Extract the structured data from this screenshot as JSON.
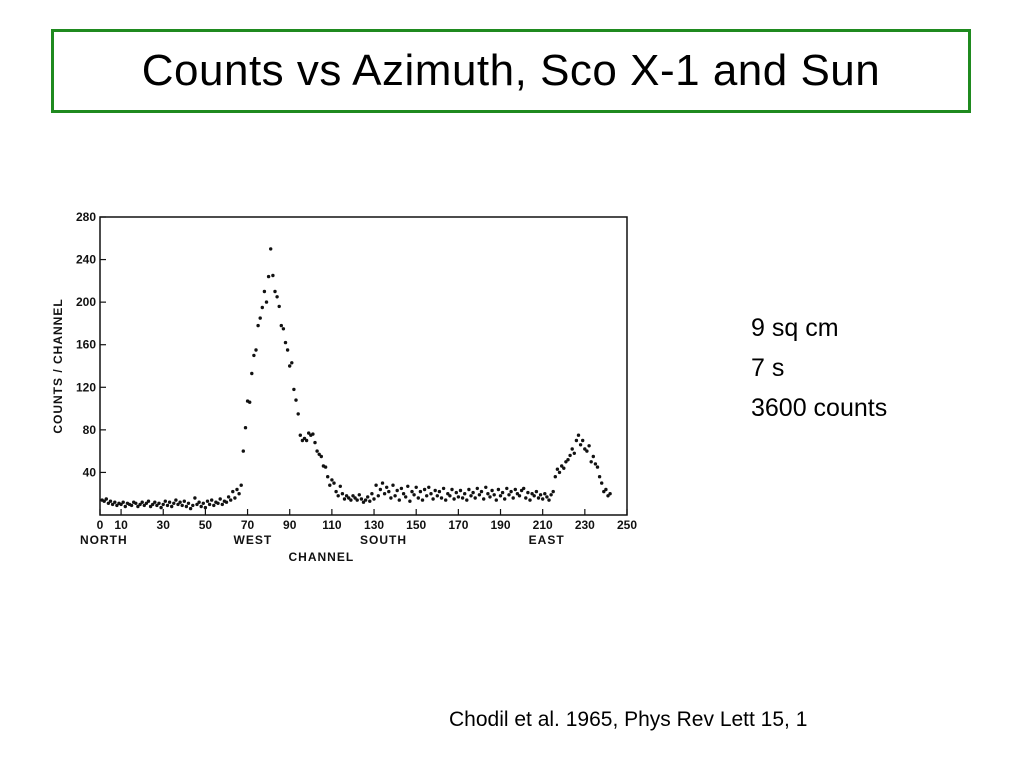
{
  "slide": {
    "title": "Counts vs Azimuth, Sco X-1 and Sun",
    "notes": [
      "9 sq cm",
      "7 s",
      "3600 counts"
    ],
    "citation": "Chodil et al. 1965, Phys Rev Lett 15, 1"
  },
  "chart_data": {
    "type": "scatter",
    "title": "",
    "xlabel": "CHANNEL",
    "ylabel": "COUNTS / CHANNEL",
    "xlim": [
      0,
      250
    ],
    "ylim": [
      0,
      280
    ],
    "xticks": [
      "0",
      "10",
      "30",
      "50",
      "70",
      "90",
      "110",
      "130",
      "150",
      "170",
      "190",
      "210",
      "230",
      "250"
    ],
    "xtick_values": [
      0,
      10,
      30,
      50,
      70,
      90,
      110,
      130,
      150,
      170,
      190,
      210,
      230,
      250
    ],
    "yticks": [
      "40",
      "80",
      "120",
      "160",
      "200",
      "240",
      "280"
    ],
    "ytick_values": [
      40,
      80,
      120,
      160,
      200,
      240,
      280
    ],
    "direction_labels": [
      {
        "text": "NORTH",
        "x": 0
      },
      {
        "text": "WEST",
        "x": 70
      },
      {
        "text": "SOUTH",
        "x": 130
      },
      {
        "text": "EAST",
        "x": 210
      }
    ],
    "grid": false,
    "series": [
      {
        "points": [
          [
            1,
            14
          ],
          [
            2,
            13
          ],
          [
            3,
            15
          ],
          [
            4,
            11
          ],
          [
            5,
            13
          ],
          [
            6,
            10
          ],
          [
            7,
            12
          ],
          [
            8,
            9
          ],
          [
            9,
            11
          ],
          [
            10,
            10
          ],
          [
            11,
            12
          ],
          [
            12,
            8
          ],
          [
            13,
            11
          ],
          [
            14,
            10
          ],
          [
            15,
            9
          ],
          [
            16,
            12
          ],
          [
            17,
            11
          ],
          [
            18,
            8
          ],
          [
            19,
            10
          ],
          [
            20,
            12
          ],
          [
            21,
            9
          ],
          [
            22,
            11
          ],
          [
            23,
            13
          ],
          [
            24,
            8
          ],
          [
            25,
            10
          ],
          [
            26,
            12
          ],
          [
            27,
            9
          ],
          [
            28,
            11
          ],
          [
            29,
            7
          ],
          [
            30,
            10
          ],
          [
            31,
            13
          ],
          [
            32,
            9
          ],
          [
            33,
            12
          ],
          [
            34,
            8
          ],
          [
            35,
            11
          ],
          [
            36,
            14
          ],
          [
            37,
            10
          ],
          [
            38,
            12
          ],
          [
            39,
            9
          ],
          [
            40,
            13
          ],
          [
            41,
            8
          ],
          [
            42,
            11
          ],
          [
            43,
            6
          ],
          [
            44,
            9
          ],
          [
            45,
            16
          ],
          [
            46,
            10
          ],
          [
            47,
            12
          ],
          [
            48,
            8
          ],
          [
            49,
            11
          ],
          [
            50,
            7
          ],
          [
            51,
            13
          ],
          [
            52,
            10
          ],
          [
            53,
            14
          ],
          [
            54,
            9
          ],
          [
            55,
            12
          ],
          [
            56,
            11
          ],
          [
            57,
            15
          ],
          [
            58,
            10
          ],
          [
            59,
            13
          ],
          [
            60,
            12
          ],
          [
            61,
            17
          ],
          [
            62,
            14
          ],
          [
            63,
            22
          ],
          [
            64,
            16
          ],
          [
            65,
            24
          ],
          [
            66,
            20
          ],
          [
            67,
            28
          ],
          [
            68,
            60
          ],
          [
            69,
            82
          ],
          [
            70,
            107
          ],
          [
            71,
            106
          ],
          [
            72,
            133
          ],
          [
            73,
            150
          ],
          [
            74,
            155
          ],
          [
            75,
            178
          ],
          [
            76,
            185
          ],
          [
            77,
            195
          ],
          [
            78,
            210
          ],
          [
            79,
            200
          ],
          [
            80,
            224
          ],
          [
            81,
            250
          ],
          [
            82,
            225
          ],
          [
            83,
            210
          ],
          [
            84,
            205
          ],
          [
            85,
            196
          ],
          [
            86,
            178
          ],
          [
            87,
            175
          ],
          [
            88,
            162
          ],
          [
            89,
            155
          ],
          [
            90,
            140
          ],
          [
            91,
            143
          ],
          [
            92,
            118
          ],
          [
            93,
            108
          ],
          [
            94,
            95
          ],
          [
            95,
            75
          ],
          [
            96,
            70
          ],
          [
            97,
            72
          ],
          [
            98,
            70
          ],
          [
            99,
            77
          ],
          [
            100,
            75
          ],
          [
            101,
            76
          ],
          [
            102,
            68
          ],
          [
            103,
            60
          ],
          [
            104,
            57
          ],
          [
            105,
            55
          ],
          [
            106,
            46
          ],
          [
            107,
            45
          ],
          [
            108,
            36
          ],
          [
            109,
            28
          ],
          [
            110,
            33
          ],
          [
            111,
            30
          ],
          [
            112,
            22
          ],
          [
            113,
            18
          ],
          [
            114,
            27
          ],
          [
            115,
            20
          ],
          [
            116,
            15
          ],
          [
            117,
            18
          ],
          [
            118,
            16
          ],
          [
            119,
            14
          ],
          [
            120,
            18
          ],
          [
            121,
            16
          ],
          [
            122,
            14
          ],
          [
            123,
            19
          ],
          [
            124,
            15
          ],
          [
            125,
            12
          ],
          [
            126,
            14
          ],
          [
            127,
            17
          ],
          [
            128,
            13
          ],
          [
            129,
            20
          ],
          [
            130,
            15
          ],
          [
            131,
            28
          ],
          [
            132,
            18
          ],
          [
            133,
            24
          ],
          [
            134,
            30
          ],
          [
            135,
            20
          ],
          [
            136,
            26
          ],
          [
            137,
            22
          ],
          [
            138,
            16
          ],
          [
            139,
            28
          ],
          [
            140,
            18
          ],
          [
            141,
            23
          ],
          [
            142,
            14
          ],
          [
            143,
            25
          ],
          [
            144,
            20
          ],
          [
            145,
            17
          ],
          [
            146,
            27
          ],
          [
            147,
            13
          ],
          [
            148,
            22
          ],
          [
            149,
            19
          ],
          [
            150,
            26
          ],
          [
            151,
            16
          ],
          [
            152,
            22
          ],
          [
            153,
            14
          ],
          [
            154,
            24
          ],
          [
            155,
            18
          ],
          [
            156,
            26
          ],
          [
            157,
            20
          ],
          [
            158,
            15
          ],
          [
            159,
            23
          ],
          [
            160,
            18
          ],
          [
            161,
            22
          ],
          [
            162,
            16
          ],
          [
            163,
            25
          ],
          [
            164,
            14
          ],
          [
            165,
            20
          ],
          [
            166,
            18
          ],
          [
            167,
            24
          ],
          [
            168,
            15
          ],
          [
            169,
            21
          ],
          [
            170,
            17
          ],
          [
            171,
            23
          ],
          [
            172,
            16
          ],
          [
            173,
            20
          ],
          [
            174,
            14
          ],
          [
            175,
            24
          ],
          [
            176,
            18
          ],
          [
            177,
            21
          ],
          [
            178,
            16
          ],
          [
            179,
            25
          ],
          [
            180,
            19
          ],
          [
            181,
            22
          ],
          [
            182,
            15
          ],
          [
            183,
            26
          ],
          [
            184,
            20
          ],
          [
            185,
            17
          ],
          [
            186,
            23
          ],
          [
            187,
            19
          ],
          [
            188,
            14
          ],
          [
            189,
            24
          ],
          [
            190,
            18
          ],
          [
            191,
            21
          ],
          [
            192,
            15
          ],
          [
            193,
            25
          ],
          [
            194,
            19
          ],
          [
            195,
            22
          ],
          [
            196,
            16
          ],
          [
            197,
            24
          ],
          [
            198,
            20
          ],
          [
            199,
            18
          ],
          [
            200,
            23
          ],
          [
            201,
            25
          ],
          [
            202,
            16
          ],
          [
            203,
            21
          ],
          [
            204,
            14
          ],
          [
            205,
            20
          ],
          [
            206,
            18
          ],
          [
            207,
            22
          ],
          [
            208,
            16
          ],
          [
            209,
            19
          ],
          [
            210,
            15
          ],
          [
            211,
            20
          ],
          [
            212,
            17
          ],
          [
            213,
            14
          ],
          [
            214,
            19
          ],
          [
            215,
            22
          ],
          [
            216,
            36
          ],
          [
            217,
            43
          ],
          [
            218,
            40
          ],
          [
            219,
            46
          ],
          [
            220,
            44
          ],
          [
            221,
            50
          ],
          [
            222,
            52
          ],
          [
            223,
            56
          ],
          [
            224,
            62
          ],
          [
            225,
            58
          ],
          [
            226,
            70
          ],
          [
            227,
            75
          ],
          [
            228,
            66
          ],
          [
            229,
            70
          ],
          [
            230,
            62
          ],
          [
            231,
            60
          ],
          [
            232,
            65
          ],
          [
            233,
            50
          ],
          [
            234,
            55
          ],
          [
            235,
            48
          ],
          [
            236,
            45
          ],
          [
            237,
            36
          ],
          [
            238,
            30
          ],
          [
            239,
            22
          ],
          [
            240,
            24
          ],
          [
            241,
            18
          ],
          [
            242,
            20
          ]
        ]
      }
    ]
  },
  "colors": {
    "title_border": "#1f8a1f",
    "marks": "#111111"
  }
}
